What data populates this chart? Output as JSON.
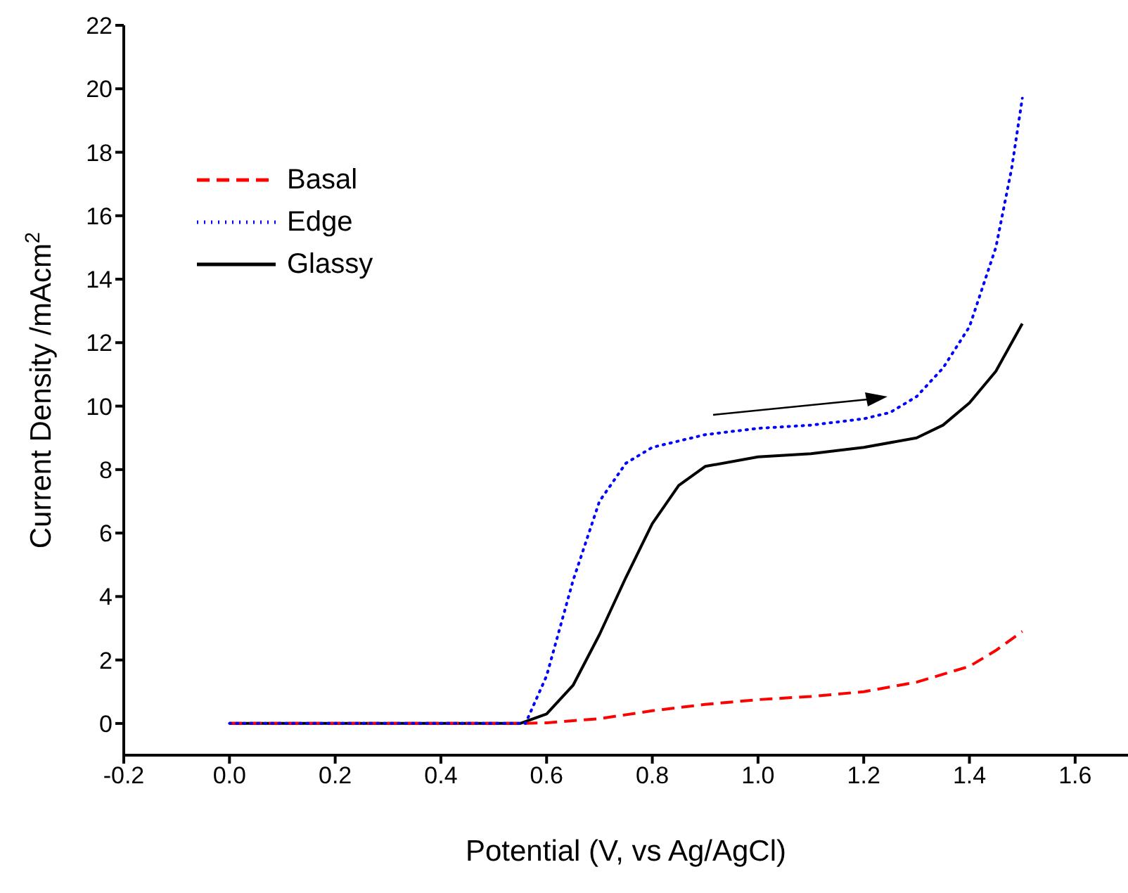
{
  "chart_data": {
    "type": "line",
    "xlabel": "Potential (V, vs Ag/AgCl)",
    "ylabel": "Current Density /mAcm$^{2}$",
    "xlim": [
      -0.2,
      1.7
    ],
    "ylim": [
      -1,
      22
    ],
    "xticks": [
      {
        "value": -0.2,
        "label": "-0.2"
      },
      {
        "value": 0,
        "label": "0.0"
      },
      {
        "value": 0.2,
        "label": "0.2"
      },
      {
        "value": 0.4,
        "label": "0.4"
      },
      {
        "value": 0.6,
        "label": "0.6"
      },
      {
        "value": 0.8,
        "label": "0.8"
      },
      {
        "value": 1,
        "label": "1.0"
      },
      {
        "value": 1.2,
        "label": "1.2"
      },
      {
        "value": 1.4,
        "label": "1.4"
      },
      {
        "value": 1.6,
        "label": "1.6"
      }
    ],
    "yticks": [
      0,
      2,
      4,
      6,
      8,
      10,
      12,
      14,
      16,
      18,
      20,
      22
    ],
    "legend": "top left",
    "grid": false,
    "series": [
      {
        "name": "Basal",
        "color": "#ff0000",
        "line_style": "dashed",
        "x": [
          0,
          0.2,
          0.4,
          0.55,
          0.6,
          0.7,
          0.8,
          0.9,
          1.0,
          1.1,
          1.2,
          1.3,
          1.4,
          1.45,
          1.5
        ],
        "values": [
          0,
          0,
          0,
          0,
          0.02,
          0.15,
          0.4,
          0.6,
          0.75,
          0.85,
          1.0,
          1.3,
          1.8,
          2.3,
          2.9
        ]
      },
      {
        "name": "Edge",
        "color": "#0000ff",
        "line_style": "dotted",
        "x": [
          0,
          0.2,
          0.4,
          0.56,
          0.6,
          0.65,
          0.7,
          0.75,
          0.8,
          0.9,
          1.0,
          1.1,
          1.2,
          1.25,
          1.3,
          1.35,
          1.4,
          1.45,
          1.48,
          1.5
        ],
        "values": [
          0,
          0,
          0,
          0,
          1.5,
          4.5,
          7,
          8.2,
          8.7,
          9.1,
          9.3,
          9.4,
          9.6,
          9.8,
          10.3,
          11.2,
          12.5,
          15,
          17.5,
          19.7
        ]
      },
      {
        "name": "Glassy",
        "color": "#000000",
        "line_style": "solid",
        "x": [
          0,
          0.2,
          0.4,
          0.55,
          0.6,
          0.65,
          0.7,
          0.75,
          0.8,
          0.85,
          0.9,
          1.0,
          1.1,
          1.2,
          1.3,
          1.35,
          1.4,
          1.45,
          1.5
        ],
        "values": [
          0,
          0,
          0,
          0,
          0.3,
          1.2,
          2.8,
          4.6,
          6.3,
          7.5,
          8.1,
          8.4,
          8.5,
          8.7,
          9.0,
          9.4,
          10.1,
          11.1,
          12.6
        ]
      }
    ]
  }
}
